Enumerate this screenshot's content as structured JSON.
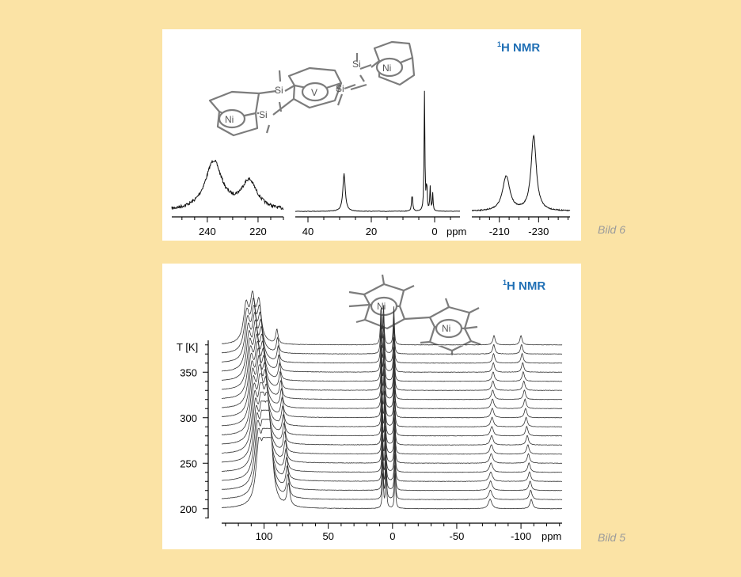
{
  "captions": {
    "top": "Bild 6",
    "bottom": "Bild 5"
  },
  "structure_labels": {
    "top": [
      "Ni",
      "V",
      "Ni",
      "Si",
      "Si",
      "Si",
      "Si"
    ],
    "bottom": [
      "Ni",
      "Ni"
    ]
  },
  "chart_data": [
    {
      "type": "line",
      "title_sup": "1",
      "title": "H  NMR",
      "xlabel": "ppm",
      "panels": [
        {
          "xlim": [
            254,
            210
          ],
          "xticks": [
            "240",
            "220"
          ],
          "peaks": [
            {
              "x": 237.5,
              "height": 0.62,
              "width": 4.0
            },
            {
              "x": 223.5,
              "height": 0.36,
              "width": 3.8
            }
          ]
        },
        {
          "xlim": [
            44,
            -8
          ],
          "xticks": [
            "40",
            "20",
            "0"
          ],
          "peaks": [
            {
              "x": 28.6,
              "height": 0.32,
              "width": 0.45
            },
            {
              "x": 7.1,
              "height": 0.15,
              "width": 0.2
            },
            {
              "x": 3.2,
              "height": 1.0,
              "width": 0.15
            },
            {
              "x": 2.5,
              "height": 0.25,
              "width": 0.15
            },
            {
              "x": 1.4,
              "height": 0.2,
              "width": 0.15
            },
            {
              "x": 0.6,
              "height": 0.15,
              "width": 0.15
            }
          ]
        },
        {
          "xlim": [
            -196,
            -246
          ],
          "xticks": [
            "-210",
            "-230"
          ],
          "peaks": [
            {
              "x": -213.5,
              "height": 0.4,
              "width": 2.2
            },
            {
              "x": -227.5,
              "height": 0.86,
              "width": 1.6
            }
          ]
        }
      ]
    },
    {
      "type": "line",
      "title_sup": "1",
      "title": "H NMR",
      "xlabel": "ppm",
      "ylabel": "T [K]",
      "xlim": [
        133,
        -132
      ],
      "xticks": [
        "100",
        "50",
        "0",
        "-50",
        "-100"
      ],
      "ylim": [
        185,
        385
      ],
      "yticks": [
        "200",
        "250",
        "300",
        "350"
      ],
      "temperatures": [
        200,
        210,
        220,
        230,
        240,
        250,
        260,
        270,
        280,
        290,
        300,
        310,
        320,
        330,
        340,
        350,
        360,
        370,
        380
      ],
      "peaks_low_T": [
        {
          "x": 104,
          "width": 2.6
        },
        {
          "x": 99,
          "width": 2.6
        },
        {
          "x": 95,
          "width": 2.4
        },
        {
          "x": 81,
          "width": 1.3
        },
        {
          "x": 7.5,
          "width": 0.5
        },
        {
          "x": 5.0,
          "width": 0.5
        },
        {
          "x": -2.0,
          "width": 0.5
        },
        {
          "x": -76,
          "width": 1.6
        },
        {
          "x": -108,
          "width": 1.2
        }
      ],
      "peaks_high_T": [
        {
          "x": 114,
          "width": 2.4
        },
        {
          "x": 109,
          "width": 2.2
        },
        {
          "x": 104,
          "width": 2.2
        },
        {
          "x": 90,
          "width": 1.0
        },
        {
          "x": 9.0,
          "width": 0.5
        },
        {
          "x": 7.0,
          "width": 0.5
        },
        {
          "x": -1.0,
          "width": 0.5
        },
        {
          "x": -79,
          "width": 1.0
        },
        {
          "x": -100,
          "width": 1.0
        }
      ]
    }
  ]
}
